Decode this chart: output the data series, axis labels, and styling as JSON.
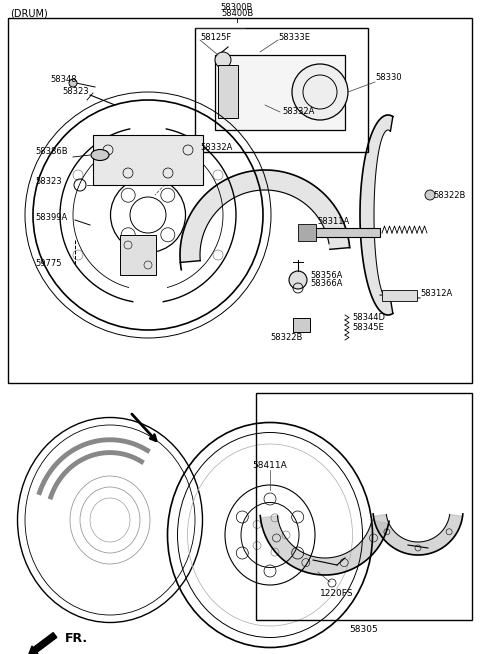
{
  "bg_color": "#ffffff",
  "line_color": "#000000",
  "title_drum": "(DRUM)",
  "top_label1": "58300B",
  "top_label2": "58400B",
  "fr_label": "FR.",
  "figw": 4.8,
  "figh": 6.54,
  "dpi": 100
}
